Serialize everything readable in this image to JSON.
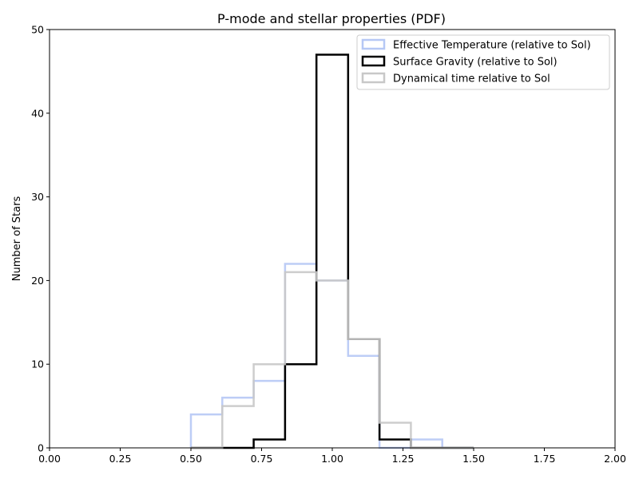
{
  "chart_data": {
    "type": "histogram",
    "title": "P-mode and stellar properties (PDF)",
    "xlabel": "",
    "ylabel": "Number of Stars",
    "xlim": [
      0.0,
      2.0
    ],
    "ylim": [
      0,
      50
    ],
    "xticks": [
      "0.00",
      "0.25",
      "0.50",
      "0.75",
      "1.00",
      "1.25",
      "1.50",
      "1.75",
      "2.00"
    ],
    "yticks": [
      "0",
      "10",
      "20",
      "30",
      "40",
      "50"
    ],
    "legend_position": "top-right",
    "grid": false,
    "bin_edges": [
      0.5,
      0.611,
      0.722,
      0.833,
      0.944,
      1.056,
      1.167,
      1.278,
      1.389,
      1.5
    ],
    "series": [
      {
        "name": "Effective Temperature (relative to Sol)",
        "color": "#b6c8f5",
        "counts": [
          4,
          6,
          8,
          22,
          20,
          11,
          0,
          1,
          0
        ]
      },
      {
        "name": "Surface Gravity (relative to Sol)",
        "color": "#000000",
        "counts": [
          0,
          0,
          1,
          10,
          47,
          13,
          1,
          0,
          0
        ]
      },
      {
        "name": "Dynamical time relative to Sol",
        "color": "#c8c8c8",
        "counts": [
          0,
          5,
          10,
          21,
          20,
          13,
          3,
          0,
          0
        ]
      }
    ]
  }
}
